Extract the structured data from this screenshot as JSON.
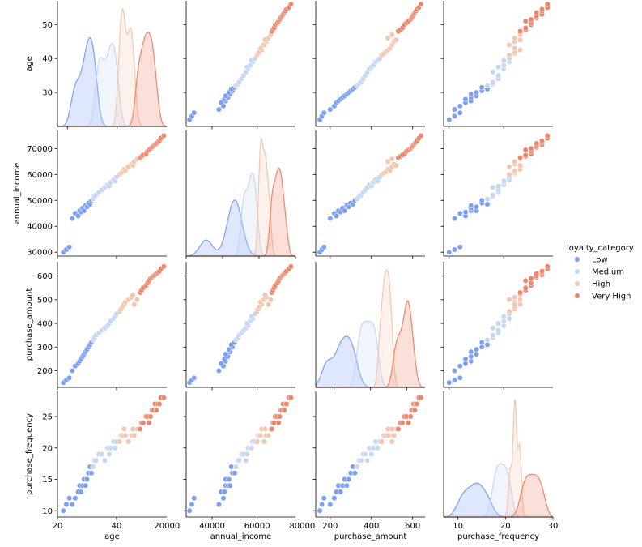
{
  "chart_data": {
    "type": "scatter",
    "title": "",
    "legend": {
      "title": "loyalty_category",
      "placement": "right",
      "entries": [
        {
          "name": "Low",
          "color": "#7b9ff9"
        },
        {
          "name": "Medium",
          "color": "#c5d7f3"
        },
        {
          "name": "High",
          "color": "#f4c6af"
        },
        {
          "name": "Very High",
          "color": "#ee8468"
        }
      ]
    },
    "variables": [
      {
        "name": "age",
        "label": "age",
        "range": [
          20,
          57
        ],
        "ticks": [
          20,
          40
        ],
        "row_ticks": [
          30,
          40,
          50
        ],
        "tick_labels": [
          "20",
          "40"
        ],
        "row_tick_labels": [
          "30",
          "40",
          "50"
        ],
        "diag_range": [
          16,
          60
        ]
      },
      {
        "name": "annual_income",
        "label": "annual_income",
        "range": [
          28500,
          77000
        ],
        "ticks": [
          20000,
          40000,
          60000,
          80000
        ],
        "row_ticks": [
          30000,
          40000,
          50000,
          60000,
          70000
        ],
        "tick_labels": [
          "20000",
          "40000",
          "60000",
          "80000"
        ],
        "row_tick_labels": [
          "30000",
          "40000",
          "50000",
          "60000",
          "70000"
        ],
        "diag_range": [
          20000,
          80000
        ]
      },
      {
        "name": "purchase_amount",
        "label": "purchase_amount",
        "range": [
          130,
          660
        ],
        "ticks": [
          200,
          400,
          600
        ],
        "row_ticks": [
          200,
          300,
          400,
          500,
          600
        ],
        "tick_labels": [
          "200",
          "400",
          "600"
        ],
        "row_tick_labels": [
          "200",
          "300",
          "400",
          "500",
          "600"
        ],
        "diag_range": [
          100,
          700
        ]
      },
      {
        "name": "purchase_frequency",
        "label": "purchase_frequency",
        "range": [
          9,
          29
        ],
        "ticks": [
          10,
          20,
          30
        ],
        "row_ticks": [
          10,
          15,
          20,
          25
        ],
        "tick_labels": [
          "10",
          "20",
          "30"
        ],
        "row_tick_labels": [
          "10",
          "15",
          "20",
          "25"
        ],
        "diag_range": [
          7,
          30
        ]
      }
    ],
    "series": [
      {
        "name": "Low",
        "color": "#7b9ff9",
        "points": [
          {
            "age": 22,
            "annual_income": 30000,
            "purchase_amount": 150,
            "purchase_frequency": 10
          },
          {
            "age": 23,
            "annual_income": 31000,
            "purchase_amount": 160,
            "purchase_frequency": 11
          },
          {
            "age": 24,
            "annual_income": 32000,
            "purchase_amount": 170,
            "purchase_frequency": 12
          },
          {
            "age": 25,
            "annual_income": 43000,
            "purchase_amount": 200,
            "purchase_frequency": 11
          },
          {
            "age": 26,
            "annual_income": 45000,
            "purchase_amount": 220,
            "purchase_frequency": 12
          },
          {
            "age": 27,
            "annual_income": 44000,
            "purchase_amount": 230,
            "purchase_frequency": 13
          },
          {
            "age": 27.5,
            "annual_income": 46000,
            "purchase_amount": 240,
            "purchase_frequency": 14
          },
          {
            "age": 28,
            "annual_income": 45500,
            "purchase_amount": 250,
            "purchase_frequency": 13
          },
          {
            "age": 28.5,
            "annual_income": 47000,
            "purchase_amount": 260,
            "purchase_frequency": 14
          },
          {
            "age": 29,
            "annual_income": 46000,
            "purchase_amount": 270,
            "purchase_frequency": 15
          },
          {
            "age": 29.5,
            "annual_income": 48000,
            "purchase_amount": 280,
            "purchase_frequency": 14
          },
          {
            "age": 30,
            "annual_income": 47500,
            "purchase_amount": 290,
            "purchase_frequency": 15
          },
          {
            "age": 30.5,
            "annual_income": 49000,
            "purchase_amount": 300,
            "purchase_frequency": 16
          },
          {
            "age": 31,
            "annual_income": 48500,
            "purchase_amount": 310,
            "purchase_frequency": 17
          },
          {
            "age": 31.5,
            "annual_income": 50000,
            "purchase_amount": 320,
            "purchase_frequency": 16
          }
        ]
      },
      {
        "name": "Medium",
        "color": "#c5d7f3",
        "points": [
          {
            "age": 32,
            "annual_income": 50500,
            "purchase_amount": 330,
            "purchase_frequency": 17
          },
          {
            "age": 32.5,
            "annual_income": 51500,
            "purchase_amount": 340,
            "purchase_frequency": 18
          },
          {
            "age": 33,
            "annual_income": 52000,
            "purchase_amount": 350,
            "purchase_frequency": 18
          },
          {
            "age": 34,
            "annual_income": 53000,
            "purchase_amount": 360,
            "purchase_frequency": 19
          },
          {
            "age": 35,
            "annual_income": 54000,
            "purchase_amount": 370,
            "purchase_frequency": 19
          },
          {
            "age": 36,
            "annual_income": 55000,
            "purchase_amount": 380,
            "purchase_frequency": 18
          },
          {
            "age": 37,
            "annual_income": 56000,
            "purchase_amount": 390,
            "purchase_frequency": 20
          },
          {
            "age": 37.5,
            "annual_income": 55500,
            "purchase_amount": 400,
            "purchase_frequency": 19
          },
          {
            "age": 38,
            "annual_income": 57000,
            "purchase_amount": 410,
            "purchase_frequency": 20
          },
          {
            "age": 39,
            "annual_income": 58000,
            "purchase_amount": 420,
            "purchase_frequency": 21
          },
          {
            "age": 39.5,
            "annual_income": 57500,
            "purchase_amount": 430,
            "purchase_frequency": 20
          },
          {
            "age": 40,
            "annual_income": 59000,
            "purchase_amount": 440,
            "purchase_frequency": 21
          }
        ]
      },
      {
        "name": "High",
        "color": "#f4c6af",
        "points": [
          {
            "age": 41,
            "annual_income": 60000,
            "purchase_amount": 450,
            "purchase_frequency": 21
          },
          {
            "age": 41.5,
            "annual_income": 60500,
            "purchase_amount": 460,
            "purchase_frequency": 22
          },
          {
            "age": 42,
            "annual_income": 61000,
            "purchase_amount": 470,
            "purchase_frequency": 22
          },
          {
            "age": 42.5,
            "annual_income": 62000,
            "purchase_amount": 480,
            "purchase_frequency": 23
          },
          {
            "age": 43,
            "annual_income": 61500,
            "purchase_amount": 490,
            "purchase_frequency": 22
          },
          {
            "age": 44,
            "annual_income": 63000,
            "purchase_amount": 500,
            "purchase_frequency": 21
          },
          {
            "age": 45,
            "annual_income": 64000,
            "purchase_amount": 510,
            "purchase_frequency": 22
          },
          {
            "age": 45.5,
            "annual_income": 63500,
            "purchase_amount": 520,
            "purchase_frequency": 23
          },
          {
            "age": 46,
            "annual_income": 65000,
            "purchase_amount": 480,
            "purchase_frequency": 22
          },
          {
            "age": 47,
            "annual_income": 66000,
            "purchase_amount": 500,
            "purchase_frequency": 23
          }
        ]
      },
      {
        "name": "Very High",
        "color": "#ee8468",
        "points": [
          {
            "age": 48,
            "annual_income": 66500,
            "purchase_amount": 530,
            "purchase_frequency": 23
          },
          {
            "age": 48.5,
            "annual_income": 67000,
            "purchase_amount": 540,
            "purchase_frequency": 24
          },
          {
            "age": 49,
            "annual_income": 67500,
            "purchase_amount": 550,
            "purchase_frequency": 24
          },
          {
            "age": 50,
            "annual_income": 68000,
            "purchase_amount": 560,
            "purchase_frequency": 25
          },
          {
            "age": 50.5,
            "annual_income": 69000,
            "purchase_amount": 570,
            "purchase_frequency": 25
          },
          {
            "age": 51,
            "annual_income": 69500,
            "purchase_amount": 580,
            "purchase_frequency": 24
          },
          {
            "age": 51.5,
            "annual_income": 70000,
            "purchase_amount": 590,
            "purchase_frequency": 25
          },
          {
            "age": 52,
            "annual_income": 70500,
            "purchase_amount": 595,
            "purchase_frequency": 26
          },
          {
            "age": 52.5,
            "annual_income": 71000,
            "purchase_amount": 600,
            "purchase_frequency": 26
          },
          {
            "age": 53,
            "annual_income": 71500,
            "purchase_amount": 605,
            "purchase_frequency": 27
          },
          {
            "age": 53.5,
            "annual_income": 72000,
            "purchase_amount": 610,
            "purchase_frequency": 26
          },
          {
            "age": 54,
            "annual_income": 72500,
            "purchase_amount": 615,
            "purchase_frequency": 27
          },
          {
            "age": 54.5,
            "annual_income": 73000,
            "purchase_amount": 620,
            "purchase_frequency": 27
          },
          {
            "age": 55,
            "annual_income": 74000,
            "purchase_amount": 630,
            "purchase_frequency": 28
          },
          {
            "age": 56,
            "annual_income": 75000,
            "purchase_amount": 640,
            "purchase_frequency": 28
          }
        ]
      }
    ]
  }
}
